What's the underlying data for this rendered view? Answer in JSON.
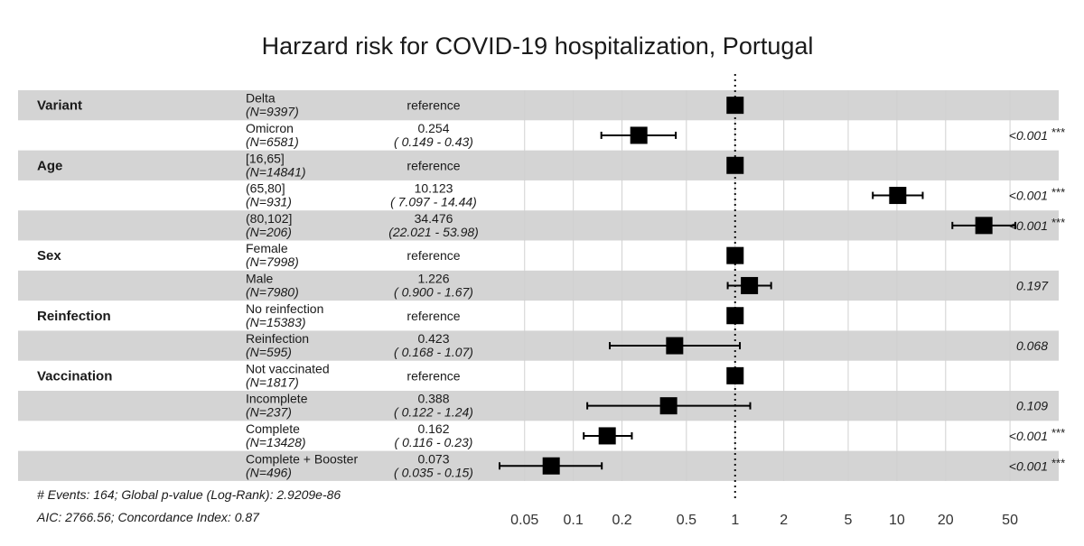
{
  "chart_data": {
    "type": "forest",
    "title": "Harzard risk for COVID-19 hospitalization, Portugal",
    "x_scale": "log",
    "xlim": [
      0.035,
      100
    ],
    "x_ticks": [
      {
        "value": 0.05,
        "label": "0.05"
      },
      {
        "value": 0.1,
        "label": "0.1"
      },
      {
        "value": 0.2,
        "label": "0.2"
      },
      {
        "value": 0.5,
        "label": "0.5"
      },
      {
        "value": 1,
        "label": "1"
      },
      {
        "value": 2,
        "label": "2"
      },
      {
        "value": 5,
        "label": "5"
      },
      {
        "value": 10,
        "label": "10"
      },
      {
        "value": 20,
        "label": "20"
      },
      {
        "value": 50,
        "label": "50"
      }
    ],
    "reference_line": 1,
    "rows": [
      {
        "variable": "Variant",
        "level": "Delta",
        "n": "(N=9397)",
        "estimate_label": "reference",
        "ci_label": "",
        "hr": 1,
        "low": null,
        "high": null,
        "p": "",
        "sig": ""
      },
      {
        "variable": "",
        "level": "Omicron",
        "n": "(N=6581)",
        "estimate_label": "0.254",
        "ci_label": "( 0.149 -  0.43)",
        "hr": 0.254,
        "low": 0.149,
        "high": 0.43,
        "p": "<0.001",
        "sig": "***"
      },
      {
        "variable": "Age",
        "level": "[16,65]",
        "n": "(N=14841)",
        "estimate_label": "reference",
        "ci_label": "",
        "hr": 1,
        "low": null,
        "high": null,
        "p": "",
        "sig": ""
      },
      {
        "variable": "",
        "level": "(65,80]",
        "n": "(N=931)",
        "estimate_label": "10.123",
        "ci_label": "( 7.097 - 14.44)",
        "hr": 10.123,
        "low": 7.097,
        "high": 14.44,
        "p": "<0.001",
        "sig": "***"
      },
      {
        "variable": "",
        "level": "(80,102]",
        "n": "(N=206)",
        "estimate_label": "34.476",
        "ci_label": "(22.021 - 53.98)",
        "hr": 34.476,
        "low": 22.021,
        "high": 53.98,
        "p": "<0.001",
        "sig": "***"
      },
      {
        "variable": "Sex",
        "level": "Female",
        "n": "(N=7998)",
        "estimate_label": "reference",
        "ci_label": "",
        "hr": 1,
        "low": null,
        "high": null,
        "p": "",
        "sig": ""
      },
      {
        "variable": "",
        "level": "Male",
        "n": "(N=7980)",
        "estimate_label": "1.226",
        "ci_label": "( 0.900 -  1.67)",
        "hr": 1.226,
        "low": 0.9,
        "high": 1.67,
        "p": "0.197",
        "sig": ""
      },
      {
        "variable": "Reinfection",
        "level": "No reinfection",
        "n": "(N=15383)",
        "estimate_label": "reference",
        "ci_label": "",
        "hr": 1,
        "low": null,
        "high": null,
        "p": "",
        "sig": ""
      },
      {
        "variable": "",
        "level": "Reinfection",
        "n": "(N=595)",
        "estimate_label": "0.423",
        "ci_label": "( 0.168 -  1.07)",
        "hr": 0.423,
        "low": 0.168,
        "high": 1.07,
        "p": "0.068",
        "sig": ""
      },
      {
        "variable": "Vaccination",
        "level": "Not vaccinated",
        "n": "(N=1817)",
        "estimate_label": "reference",
        "ci_label": "",
        "hr": 1,
        "low": null,
        "high": null,
        "p": "",
        "sig": ""
      },
      {
        "variable": "",
        "level": "Incomplete",
        "n": "(N=237)",
        "estimate_label": "0.388",
        "ci_label": "( 0.122 -  1.24)",
        "hr": 0.388,
        "low": 0.122,
        "high": 1.24,
        "p": "0.109",
        "sig": ""
      },
      {
        "variable": "",
        "level": "Complete",
        "n": "(N=13428)",
        "estimate_label": "0.162",
        "ci_label": "( 0.116 -  0.23)",
        "hr": 0.162,
        "low": 0.116,
        "high": 0.23,
        "p": "<0.001",
        "sig": "***"
      },
      {
        "variable": "",
        "level": "Complete + Booster",
        "n": "(N=496)",
        "estimate_label": "0.073",
        "ci_label": "( 0.035 -  0.15)",
        "hr": 0.073,
        "low": 0.035,
        "high": 0.15,
        "p": "<0.001",
        "sig": "***"
      }
    ],
    "footer": [
      "# Events: 164; Global p-value (Log-Rank): 2.9209e-86",
      "AIC: 2766.56; Concordance Index: 0.87"
    ],
    "colors": {
      "band": "#d4d4d4",
      "grid": "#d0d0d0",
      "marker": "#000000"
    }
  }
}
